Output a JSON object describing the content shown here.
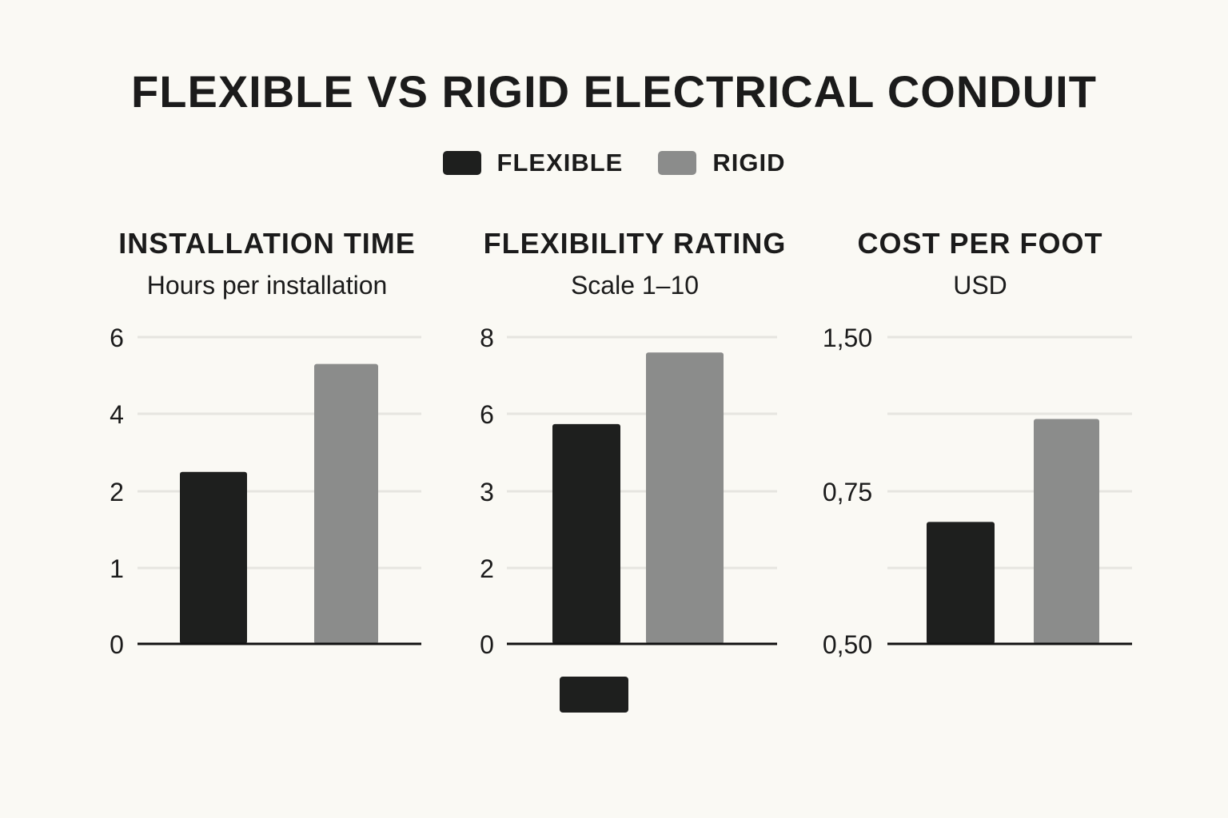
{
  "title": "FLEXIBLE VS RIGID ELECTRICAL CONDUIT",
  "colors": {
    "flexible": "#1e1f1e",
    "rigid": "#8b8c8b",
    "grid": "#e6e5e0",
    "axis": "#111111",
    "background": "#faf9f4"
  },
  "legend": [
    {
      "label": "FLEXIBLE",
      "color": "#1e1f1e"
    },
    {
      "label": "RIGID",
      "color": "#8b8c8b"
    }
  ],
  "chart_data": [
    {
      "type": "bar",
      "title": "INSTALLATION TIME",
      "subtitle": "Hours per installation",
      "tick_labels": [
        "0",
        "1",
        "2",
        "4",
        "6"
      ],
      "series": [
        {
          "name": "FLEXIBLE",
          "value": 2.5
        },
        {
          "name": "RIGID",
          "value": 5.3
        }
      ],
      "grid": true
    },
    {
      "type": "bar",
      "title": "FLEXIBILITY RATING",
      "subtitle": "Scale 1–10",
      "tick_labels": [
        "0",
        "2",
        "3",
        "6",
        "8"
      ],
      "series": [
        {
          "name": "FLEXIBLE",
          "value": 5.6
        },
        {
          "name": "RIGID",
          "value": 7.6
        }
      ],
      "grid": true
    },
    {
      "type": "bar",
      "title": "COST PER FOOT",
      "subtitle": "USD",
      "tick_labels": [
        "0,50",
        "",
        "0,75",
        "",
        "1,50"
      ],
      "series": [
        {
          "name": "FLEXIBLE",
          "value": 0.7
        },
        {
          "name": "RIGID",
          "value": 1.1
        }
      ],
      "grid": true
    }
  ]
}
